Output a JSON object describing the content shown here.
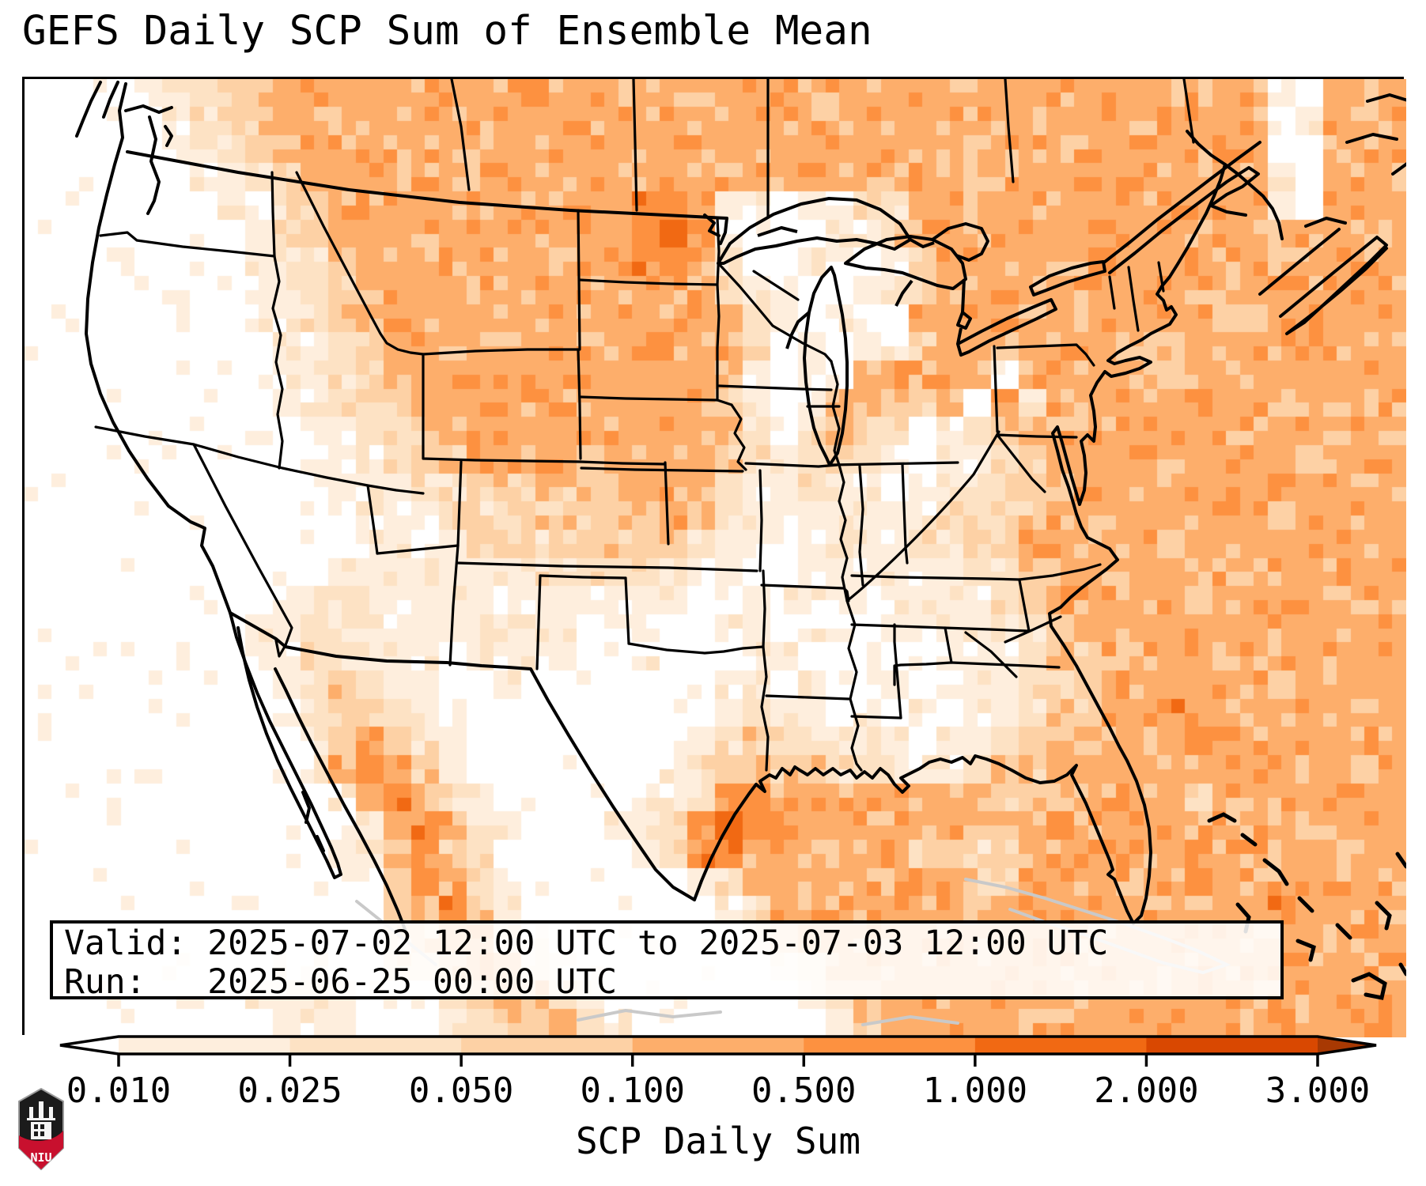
{
  "title": "GEFS Daily SCP Sum of Ensemble Mean",
  "info_box": {
    "valid_line": "Valid: 2025-07-02 12:00 UTC to 2025-07-03 12:00 UTC",
    "run_line": "Run:   2025-06-25 00:00 UTC"
  },
  "logo": {
    "text": "NIU",
    "red": "#c8102e",
    "black": "#1b1b1b"
  },
  "colorbar": {
    "label": "SCP Daily Sum",
    "ticks": [
      "0.010",
      "0.025",
      "0.050",
      "0.100",
      "0.500",
      "1.000",
      "2.000",
      "3.000"
    ],
    "segment_colors": [
      "#feeedd",
      "#fde2c4",
      "#fdd1a5",
      "#fdae6b",
      "#fd9140",
      "#f16913",
      "#d94801"
    ],
    "under_color": "#ffffff",
    "over_color": "#a83903",
    "outline_color": "#000000"
  },
  "chart_data": {
    "type": "heatmap",
    "title": "GEFS Daily SCP Sum of Ensemble Mean",
    "value_label": "SCP Daily Sum",
    "bounds": [
      0.01,
      0.025,
      0.05,
      0.1,
      0.5,
      1.0,
      2.0,
      3.0
    ],
    "extend": "both",
    "level_colors": [
      "#ffffff",
      "#feeedd",
      "#fde2c4",
      "#fdd1a5",
      "#fdae6b",
      "#fd9140",
      "#f16913",
      "#d94801",
      "#a83903"
    ],
    "grid_note": "coarse 50x34 intensity grid (levels 0-6 index level_colors) read from map, row 0 = north",
    "grid": [
      "00001123344444444454444444444444444444444444410444",
      "00000123344444444444444444444444444444444444401444",
      "00000112344444444444444444444444443444444444400444",
      "00000011234444444444444444444444444444444444410444",
      "00000001123444444444445541101122444444444444410444",
      "00000000123444444444445651000113444444444444444444",
      "00000000122344444444445541001101344444444444434444",
      "00000000112334444444444442110012344444444444444444",
      "00000000112334444444444444210110444444444443344444",
      "00000000011234444444445444201011344344443344444444",
      "00000000011234444444444444101044444044444344444444",
      "00000000011223444444444443101443340414444444434444",
      "00000000001122344444444444202432012344444444444444",
      "00000000001112334444344443212321011234444444443444",
      "00000000000111223333334442112110112233444444444444",
      "00000000000011122233333432111111122334444444434444",
      "00000000000011112223333321101111223344444344444444",
      "00000000000111111122222211001111112234444444444444",
      "00000000011211111111111100111111111234444434444444",
      "00000000112111111111011001101101111223444444444444",
      "00000000112211101111001000110010111123344443444444",
      "00000000012321100100000001101001011122344444434444",
      "00000000012332110000000001211010101123344544444444",
      "00000000001343210000000012322111011233444454444444",
      "00000000001454310000000123433221112334444444444434",
      "00000000000145421000001125544444444333444434444444",
      "00000000000014542100011256544444443345444444444444",
      "00000000000124532000001255444444332344444454444444",
      "00000000000013542100000012444444443344444454444444",
      "00000000000003453100000001244444444444444444454444",
      "00000000000002344210000000134444444444444444444444",
      "00000000011002234421000000012444444444444444444444",
      "00000000112100123442100000001344444444444444444444",
      "00000000011100012334210000000134444444444444444444"
    ]
  }
}
